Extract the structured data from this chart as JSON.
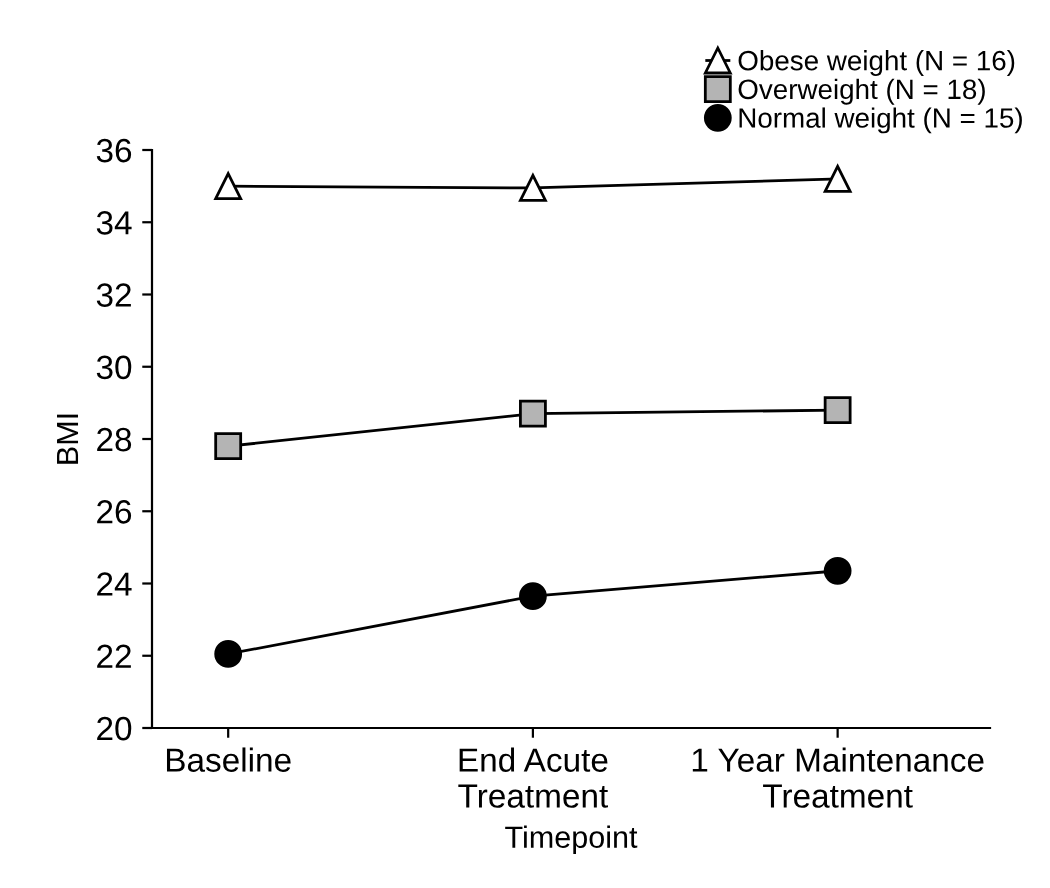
{
  "chart_data": {
    "type": "line",
    "xlabel": "Timepoint",
    "ylabel": "BMI",
    "categories": [
      "Baseline",
      "End Acute\nTreatment",
      "1 Year Maintenance\nTreatment"
    ],
    "series": [
      {
        "name": "Obese weight (N = 16)",
        "color": "#ffffff",
        "marker": "triangle",
        "values": [
          35.0,
          34.95,
          35.2
        ]
      },
      {
        "name": "Overweight (N = 18)",
        "color": "#b4b4b4",
        "marker": "square",
        "values": [
          27.8,
          28.7,
          28.8
        ]
      },
      {
        "name": "Normal weight (N = 15)",
        "color": "#000000",
        "marker": "circle",
        "values": [
          22.05,
          23.65,
          24.35
        ]
      }
    ],
    "ylim": [
      20,
      36
    ],
    "yticks": [
      20,
      22,
      24,
      26,
      28,
      30,
      32,
      34,
      36
    ],
    "grid": false,
    "legend": "top right",
    "line_style": "solid"
  }
}
